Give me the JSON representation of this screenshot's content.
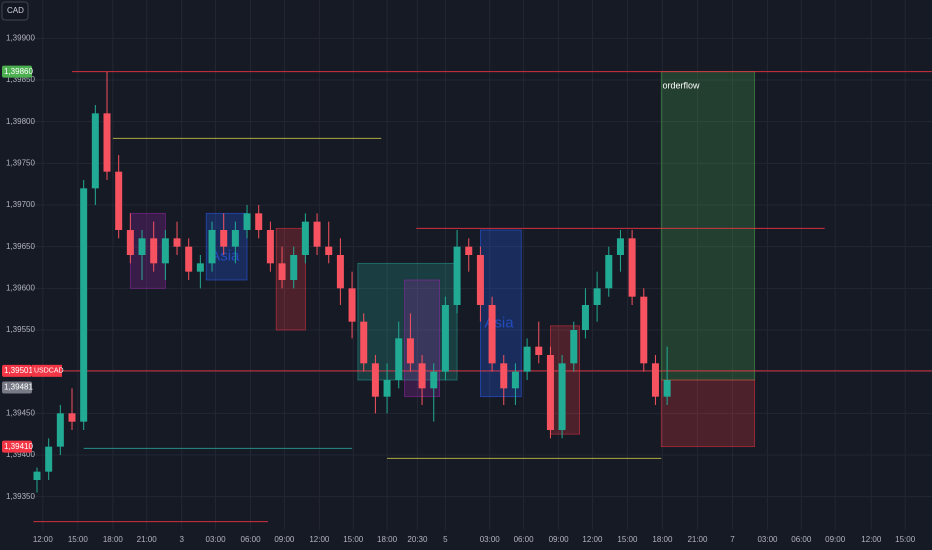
{
  "chart_data": {
    "type": "candlestick",
    "symbol_button": "CAD",
    "symbol_tag": "USDCAD",
    "up_color": "#22ab94",
    "down_color": "#f7525f",
    "grid": true,
    "x": [
      0,
      1,
      2,
      3,
      4,
      5,
      6,
      7,
      8,
      9,
      10,
      11,
      12,
      13,
      14,
      15,
      16,
      17,
      18,
      19,
      20,
      21,
      22,
      23,
      24,
      25,
      26,
      27,
      28,
      29,
      30,
      31,
      32,
      33,
      34,
      35,
      36,
      37,
      38,
      39,
      40,
      41,
      42,
      43,
      44,
      45,
      46,
      47,
      48,
      49,
      50,
      51,
      52,
      53,
      54
    ],
    "open": [
      1.3937,
      1.3938,
      1.3941,
      1.3945,
      1.3944,
      1.3972,
      1.3981,
      1.3974,
      1.3967,
      1.3964,
      1.3966,
      1.3963,
      1.3966,
      1.3965,
      1.3962,
      1.3963,
      1.3967,
      1.3965,
      1.3967,
      1.3969,
      1.3967,
      1.3963,
      1.3961,
      1.3964,
      1.3968,
      1.3965,
      1.3964,
      1.396,
      1.3956,
      1.3951,
      1.3947,
      1.3949,
      1.3954,
      1.3951,
      1.3948,
      1.395,
      1.3958,
      1.3965,
      1.3964,
      1.3958,
      1.3951,
      1.3948,
      1.395,
      1.3953,
      1.3952,
      1.3943,
      1.3951,
      1.3955,
      1.3958,
      1.396,
      1.3964,
      1.3966,
      1.3959,
      1.3951,
      1.3947
    ],
    "high": [
      1.39385,
      1.3942,
      1.3946,
      1.3948,
      1.3973,
      1.3982,
      1.3986,
      1.3976,
      1.3969,
      1.3967,
      1.3968,
      1.3967,
      1.3968,
      1.3966,
      1.3964,
      1.3968,
      1.3969,
      1.3968,
      1.397,
      1.397,
      1.3968,
      1.3965,
      1.3965,
      1.3969,
      1.3969,
      1.3968,
      1.3966,
      1.3962,
      1.3957,
      1.3952,
      1.3951,
      1.3956,
      1.3957,
      1.3952,
      1.3951,
      1.3959,
      1.3967,
      1.3966,
      1.3965,
      1.3959,
      1.3952,
      1.3951,
      1.3954,
      1.3956,
      1.3953,
      1.3952,
      1.3956,
      1.396,
      1.3962,
      1.3965,
      1.3967,
      1.3967,
      1.396,
      1.3952,
      1.3953
    ],
    "low": [
      1.39355,
      1.3937,
      1.394,
      1.3943,
      1.3943,
      1.397,
      1.3973,
      1.3966,
      1.3963,
      1.3961,
      1.3962,
      1.3961,
      1.3964,
      1.3961,
      1.396,
      1.3962,
      1.3964,
      1.3963,
      1.3966,
      1.3966,
      1.3962,
      1.396,
      1.396,
      1.3963,
      1.3964,
      1.3963,
      1.3958,
      1.3954,
      1.395,
      1.3945,
      1.3945,
      1.3948,
      1.395,
      1.3946,
      1.3944,
      1.3949,
      1.3957,
      1.3962,
      1.3956,
      1.395,
      1.3946,
      1.3946,
      1.3949,
      1.3951,
      1.3942,
      1.3942,
      1.395,
      1.3954,
      1.3956,
      1.3959,
      1.3962,
      1.3958,
      1.395,
      1.3946,
      1.3946
    ],
    "close": [
      1.3938,
      1.3941,
      1.3945,
      1.3944,
      1.3972,
      1.3981,
      1.3974,
      1.3967,
      1.3964,
      1.3966,
      1.3963,
      1.3966,
      1.3965,
      1.3962,
      1.3963,
      1.3967,
      1.3965,
      1.3967,
      1.3969,
      1.3967,
      1.3963,
      1.3961,
      1.3964,
      1.3968,
      1.3965,
      1.3964,
      1.396,
      1.3956,
      1.3951,
      1.3947,
      1.3949,
      1.3954,
      1.3951,
      1.3948,
      1.395,
      1.3958,
      1.3965,
      1.3964,
      1.3958,
      1.3951,
      1.3948,
      1.395,
      1.3953,
      1.3952,
      1.3943,
      1.3951,
      1.3955,
      1.3958,
      1.396,
      1.3964,
      1.3966,
      1.3959,
      1.3951,
      1.3947,
      1.3949
    ],
    "ylim": [
      1.3931,
      1.3991
    ],
    "yticks": [
      {
        "value": 1.399,
        "label": "1,39900"
      },
      {
        "value": 1.3985,
        "label": "1,39850"
      },
      {
        "value": 1.398,
        "label": "1,39800"
      },
      {
        "value": 1.3975,
        "label": "1,39750"
      },
      {
        "value": 1.397,
        "label": "1,39700"
      },
      {
        "value": 1.3965,
        "label": "1,39650"
      },
      {
        "value": 1.396,
        "label": "1,39600"
      },
      {
        "value": 1.3955,
        "label": "1,39550"
      },
      {
        "value": 1.395,
        "label": "1,39500"
      },
      {
        "value": 1.3945,
        "label": "1,39450"
      },
      {
        "value": 1.394,
        "label": "1,39400"
      },
      {
        "value": 1.3935,
        "label": "1,39350"
      }
    ],
    "xlim": [
      -0.6,
      76.7
    ],
    "xticks": [
      {
        "value": 0.5,
        "label": "12:00"
      },
      {
        "value": 3.5,
        "label": "15:00"
      },
      {
        "value": 6.5,
        "label": "18:00"
      },
      {
        "value": 9.4,
        "label": "21:00"
      },
      {
        "value": 12.4,
        "label": "3"
      },
      {
        "value": 15.3,
        "label": "03:00"
      },
      {
        "value": 18.3,
        "label": "06:00"
      },
      {
        "value": 21.2,
        "label": "09:00"
      },
      {
        "value": 24.2,
        "label": "12:00"
      },
      {
        "value": 27.1,
        "label": "15:00"
      },
      {
        "value": 30,
        "label": "18:00"
      },
      {
        "value": 32.6,
        "label": "20:30"
      },
      {
        "value": 35,
        "label": "5"
      },
      {
        "value": 38.8,
        "label": "03:00"
      },
      {
        "value": 41.7,
        "label": "06:00"
      },
      {
        "value": 44.7,
        "label": "09:00"
      },
      {
        "value": 47.6,
        "label": "12:00"
      },
      {
        "value": 50.6,
        "label": "15:00"
      },
      {
        "value": 53.6,
        "label": "18:00"
      },
      {
        "value": 56.6,
        "label": "21:00"
      },
      {
        "value": 59.6,
        "label": "7"
      },
      {
        "value": 62.6,
        "label": "03:00"
      },
      {
        "value": 65.5,
        "label": "06:00"
      },
      {
        "value": 68.4,
        "label": "09:00"
      },
      {
        "value": 71.5,
        "label": "12:00"
      },
      {
        "value": 74.4,
        "label": "15:00"
      }
    ],
    "levels": [
      {
        "value": 1.3986,
        "color": "#f23645"
      },
      {
        "value": 1.39501,
        "color": "#f23645"
      },
      {
        "value": 1.3978,
        "color": "#c9c34a"
      },
      {
        "value": 1.39672,
        "color": "#f23645"
      },
      {
        "value": 1.3932,
        "color": "#f23645"
      },
      {
        "value": 1.39408,
        "color": "#26a69a"
      },
      {
        "value": 1.39396,
        "color": "#c9c34a"
      }
    ],
    "zones": [
      {
        "top": 1.3969,
        "bottom": 1.396,
        "color": "#9c27b0"
      },
      {
        "top": 1.3969,
        "bottom": 1.3961,
        "color": "#2962ff",
        "label": "Asia"
      },
      {
        "top": 1.39672,
        "bottom": 1.3955,
        "color": "#f23645"
      },
      {
        "top": 1.3963,
        "bottom": 1.3949,
        "color": "#26a69a"
      },
      {
        "top": 1.3961,
        "bottom": 1.3947,
        "color": "#9c27b0"
      },
      {
        "top": 1.3967,
        "bottom": 1.3947,
        "color": "#2962ff",
        "label": "Asia"
      },
      {
        "top": 1.39555,
        "bottom": 1.39425,
        "color": "#f23645"
      },
      {
        "top": 1.3986,
        "bottom": 1.3949,
        "color": "#4caf50"
      },
      {
        "top": 1.3949,
        "bottom": 1.3941,
        "color": "#f23645"
      }
    ],
    "annotation": {
      "text": "orderflow",
      "value": 1.3985
    },
    "price_labels": [
      {
        "value": 1.3986,
        "label": "1,39860",
        "color": "#4caf50"
      },
      {
        "value": 1.39501,
        "label": "1,39501",
        "color": "#f23645"
      },
      {
        "value": 1.39481,
        "label": "1,39481",
        "color": "#787b86"
      },
      {
        "value": 1.3941,
        "label": "1,39410",
        "color": "#f23645"
      }
    ]
  }
}
